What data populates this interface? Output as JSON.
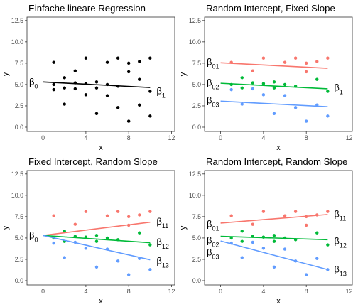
{
  "chart_data": [
    {
      "type": "scatter",
      "title": "Einfache lineare Regression",
      "xlabel": "x",
      "ylabel": "y",
      "xlim": [
        -1.5,
        12.3
      ],
      "ylim": [
        -0.5,
        12.9
      ],
      "xticks": [
        "0",
        "4",
        "8",
        "12"
      ],
      "yticks": [
        "0.0",
        "2.5",
        "5.0",
        "7.5",
        "10.0",
        "12.5"
      ],
      "grid": false,
      "points": [
        {
          "x": 1,
          "y": 7.6
        },
        {
          "x": 1,
          "y": 4.4
        },
        {
          "x": 1,
          "y": 5.0
        },
        {
          "x": 2,
          "y": 5.8
        },
        {
          "x": 2,
          "y": 4.6
        },
        {
          "x": 2,
          "y": 2.7
        },
        {
          "x": 3,
          "y": 6.6
        },
        {
          "x": 3,
          "y": 5.2
        },
        {
          "x": 3,
          "y": 4.5
        },
        {
          "x": 4,
          "y": 8.1
        },
        {
          "x": 4,
          "y": 5.1
        },
        {
          "x": 4,
          "y": 3.8
        },
        {
          "x": 5,
          "y": 5.3
        },
        {
          "x": 5,
          "y": 4.6
        },
        {
          "x": 5,
          "y": 1.6
        },
        {
          "x": 6,
          "y": 7.6
        },
        {
          "x": 6,
          "y": 5.0
        },
        {
          "x": 6,
          "y": 3.7
        },
        {
          "x": 7,
          "y": 8.1
        },
        {
          "x": 7,
          "y": 4.8
        },
        {
          "x": 7,
          "y": 2.3
        },
        {
          "x": 8,
          "y": 7.5
        },
        {
          "x": 8,
          "y": 6.5
        },
        {
          "x": 8,
          "y": 0.7
        },
        {
          "x": 9,
          "y": 7.7
        },
        {
          "x": 9,
          "y": 5.6
        },
        {
          "x": 9,
          "y": 2.6
        },
        {
          "x": 10,
          "y": 8.1
        },
        {
          "x": 10,
          "y": 4.2
        },
        {
          "x": 10,
          "y": 1.3
        }
      ],
      "lines": [
        {
          "x1": 0,
          "y1": 5.3,
          "x2": 10,
          "y2": 4.65,
          "color": "#000000"
        }
      ],
      "annotations": [
        {
          "text": "β",
          "sub": "0",
          "x": -1.4,
          "y": 5.3
        },
        {
          "text": "β",
          "sub": "1",
          "x": 10.6,
          "y": 4.2
        }
      ]
    },
    {
      "type": "scatter",
      "title": "Random Intercept, Fixed Slope",
      "xlabel": "x",
      "ylabel": "y",
      "xlim": [
        -1.5,
        12.3
      ],
      "ylim": [
        -0.5,
        12.9
      ],
      "xticks": [
        "0",
        "4",
        "8",
        "12"
      ],
      "yticks": [
        "0.0",
        "2.5",
        "5.0",
        "7.5",
        "10.0",
        "12.5"
      ],
      "grid": false,
      "series_colors": [
        "#F8766D",
        "#00BA38",
        "#619CFF"
      ],
      "points": [
        {
          "x": 1,
          "y": 7.6,
          "g": 0
        },
        {
          "x": 1,
          "y": 5.0,
          "g": 1
        },
        {
          "x": 1,
          "y": 4.4,
          "g": 2
        },
        {
          "x": 2,
          "y": 5.8,
          "g": 1
        },
        {
          "x": 2,
          "y": 4.6,
          "g": 1
        },
        {
          "x": 2,
          "y": 2.7,
          "g": 2
        },
        {
          "x": 3,
          "y": 6.6,
          "g": 0
        },
        {
          "x": 3,
          "y": 5.2,
          "g": 1
        },
        {
          "x": 3,
          "y": 4.5,
          "g": 2
        },
        {
          "x": 4,
          "y": 8.1,
          "g": 0
        },
        {
          "x": 4,
          "y": 5.1,
          "g": 1
        },
        {
          "x": 4,
          "y": 3.8,
          "g": 2
        },
        {
          "x": 5,
          "y": 5.3,
          "g": 1
        },
        {
          "x": 5,
          "y": 4.6,
          "g": 1
        },
        {
          "x": 5,
          "y": 1.6,
          "g": 2
        },
        {
          "x": 6,
          "y": 7.6,
          "g": 0
        },
        {
          "x": 6,
          "y": 5.0,
          "g": 1
        },
        {
          "x": 6,
          "y": 3.7,
          "g": 2
        },
        {
          "x": 7,
          "y": 8.1,
          "g": 0
        },
        {
          "x": 7,
          "y": 4.8,
          "g": 1
        },
        {
          "x": 7,
          "y": 2.3,
          "g": 2
        },
        {
          "x": 8,
          "y": 7.5,
          "g": 0
        },
        {
          "x": 8,
          "y": 6.5,
          "g": 0
        },
        {
          "x": 8,
          "y": 0.7,
          "g": 2
        },
        {
          "x": 9,
          "y": 7.7,
          "g": 0
        },
        {
          "x": 9,
          "y": 5.6,
          "g": 1
        },
        {
          "x": 9,
          "y": 2.6,
          "g": 2
        },
        {
          "x": 10,
          "y": 8.1,
          "g": 0
        },
        {
          "x": 10,
          "y": 4.2,
          "g": 1
        },
        {
          "x": 10,
          "y": 1.3,
          "g": 2
        }
      ],
      "lines": [
        {
          "x1": 0,
          "y1": 7.55,
          "x2": 10,
          "y2": 6.9,
          "color": "#F8766D"
        },
        {
          "x1": 0,
          "y1": 5.15,
          "x2": 10,
          "y2": 4.5,
          "color": "#00BA38"
        },
        {
          "x1": 0,
          "y1": 3.05,
          "x2": 10,
          "y2": 2.4,
          "color": "#619CFF"
        }
      ],
      "annotations": [
        {
          "text": "β",
          "sub": "01",
          "x": -1.4,
          "y": 7.6
        },
        {
          "text": "β",
          "sub": "02",
          "x": -1.4,
          "y": 5.2
        },
        {
          "text": "β",
          "sub": "03",
          "x": -1.4,
          "y": 3.1
        },
        {
          "text": "β",
          "sub": "1",
          "x": 10.6,
          "y": 4.6
        }
      ]
    },
    {
      "type": "scatter",
      "title": "Fixed Intercept, Random Slope",
      "xlabel": "x",
      "ylabel": "y",
      "xlim": [
        -1.5,
        12.3
      ],
      "ylim": [
        -0.5,
        12.9
      ],
      "xticks": [
        "0",
        "4",
        "8",
        "12"
      ],
      "yticks": [
        "0.0",
        "2.5",
        "5.0",
        "7.5",
        "10.0",
        "12.5"
      ],
      "grid": false,
      "series_colors": [
        "#F8766D",
        "#00BA38",
        "#619CFF"
      ],
      "points": [
        {
          "x": 1,
          "y": 7.6,
          "g": 0
        },
        {
          "x": 1,
          "y": 5.0,
          "g": 1
        },
        {
          "x": 1,
          "y": 4.4,
          "g": 2
        },
        {
          "x": 2,
          "y": 5.8,
          "g": 1
        },
        {
          "x": 2,
          "y": 4.6,
          "g": 1
        },
        {
          "x": 2,
          "y": 2.7,
          "g": 2
        },
        {
          "x": 3,
          "y": 6.6,
          "g": 0
        },
        {
          "x": 3,
          "y": 5.2,
          "g": 1
        },
        {
          "x": 3,
          "y": 4.5,
          "g": 2
        },
        {
          "x": 4,
          "y": 8.1,
          "g": 0
        },
        {
          "x": 4,
          "y": 5.1,
          "g": 1
        },
        {
          "x": 4,
          "y": 3.8,
          "g": 2
        },
        {
          "x": 5,
          "y": 5.3,
          "g": 1
        },
        {
          "x": 5,
          "y": 4.6,
          "g": 1
        },
        {
          "x": 5,
          "y": 1.6,
          "g": 2
        },
        {
          "x": 6,
          "y": 7.6,
          "g": 0
        },
        {
          "x": 6,
          "y": 5.0,
          "g": 1
        },
        {
          "x": 6,
          "y": 3.7,
          "g": 2
        },
        {
          "x": 7,
          "y": 8.1,
          "g": 0
        },
        {
          "x": 7,
          "y": 4.8,
          "g": 1
        },
        {
          "x": 7,
          "y": 2.3,
          "g": 2
        },
        {
          "x": 8,
          "y": 7.5,
          "g": 0
        },
        {
          "x": 8,
          "y": 6.5,
          "g": 0
        },
        {
          "x": 8,
          "y": 0.7,
          "g": 2
        },
        {
          "x": 9,
          "y": 7.7,
          "g": 0
        },
        {
          "x": 9,
          "y": 5.6,
          "g": 1
        },
        {
          "x": 9,
          "y": 2.6,
          "g": 2
        },
        {
          "x": 10,
          "y": 8.1,
          "g": 0
        },
        {
          "x": 10,
          "y": 4.2,
          "g": 1
        },
        {
          "x": 10,
          "y": 1.3,
          "g": 2
        }
      ],
      "lines": [
        {
          "x1": 0,
          "y1": 5.3,
          "x2": 10,
          "y2": 6.85,
          "color": "#F8766D"
        },
        {
          "x1": 0,
          "y1": 5.3,
          "x2": 10,
          "y2": 4.45,
          "color": "#00BA38"
        },
        {
          "x1": 0,
          "y1": 5.3,
          "x2": 10,
          "y2": 2.45,
          "color": "#619CFF"
        }
      ],
      "annotations": [
        {
          "text": "β",
          "sub": "0",
          "x": -1.4,
          "y": 5.3
        },
        {
          "text": "β",
          "sub": "11",
          "x": 10.6,
          "y": 6.9
        },
        {
          "text": "β",
          "sub": "12",
          "x": 10.6,
          "y": 4.5
        },
        {
          "text": "β",
          "sub": "13",
          "x": 10.6,
          "y": 2.3
        }
      ]
    },
    {
      "type": "scatter",
      "title": "Random Intercept, Random Slope",
      "xlabel": "x",
      "ylabel": "y",
      "xlim": [
        -1.5,
        12.3
      ],
      "ylim": [
        -0.5,
        12.9
      ],
      "xticks": [
        "0",
        "4",
        "8",
        "12"
      ],
      "yticks": [
        "0.0",
        "2.5",
        "5.0",
        "7.5",
        "10.0",
        "12.5"
      ],
      "grid": false,
      "series_colors": [
        "#F8766D",
        "#00BA38",
        "#619CFF"
      ],
      "points": [
        {
          "x": 1,
          "y": 7.6,
          "g": 0
        },
        {
          "x": 1,
          "y": 5.0,
          "g": 1
        },
        {
          "x": 1,
          "y": 4.4,
          "g": 2
        },
        {
          "x": 2,
          "y": 5.8,
          "g": 1
        },
        {
          "x": 2,
          "y": 4.6,
          "g": 1
        },
        {
          "x": 2,
          "y": 2.7,
          "g": 2
        },
        {
          "x": 3,
          "y": 6.6,
          "g": 0
        },
        {
          "x": 3,
          "y": 5.2,
          "g": 1
        },
        {
          "x": 3,
          "y": 4.5,
          "g": 2
        },
        {
          "x": 4,
          "y": 8.1,
          "g": 0
        },
        {
          "x": 4,
          "y": 5.1,
          "g": 1
        },
        {
          "x": 4,
          "y": 3.8,
          "g": 2
        },
        {
          "x": 5,
          "y": 5.3,
          "g": 1
        },
        {
          "x": 5,
          "y": 4.6,
          "g": 1
        },
        {
          "x": 5,
          "y": 1.6,
          "g": 2
        },
        {
          "x": 6,
          "y": 7.6,
          "g": 0
        },
        {
          "x": 6,
          "y": 5.0,
          "g": 1
        },
        {
          "x": 6,
          "y": 3.7,
          "g": 2
        },
        {
          "x": 7,
          "y": 8.1,
          "g": 0
        },
        {
          "x": 7,
          "y": 4.8,
          "g": 1
        },
        {
          "x": 7,
          "y": 2.3,
          "g": 2
        },
        {
          "x": 8,
          "y": 7.5,
          "g": 0
        },
        {
          "x": 8,
          "y": 6.5,
          "g": 0
        },
        {
          "x": 8,
          "y": 0.7,
          "g": 2
        },
        {
          "x": 9,
          "y": 7.7,
          "g": 0
        },
        {
          "x": 9,
          "y": 5.6,
          "g": 1
        },
        {
          "x": 9,
          "y": 2.6,
          "g": 2
        },
        {
          "x": 10,
          "y": 8.1,
          "g": 0
        },
        {
          "x": 10,
          "y": 4.2,
          "g": 1
        },
        {
          "x": 10,
          "y": 1.3,
          "g": 2
        }
      ],
      "lines": [
        {
          "x1": 0,
          "y1": 6.75,
          "x2": 10,
          "y2": 7.75,
          "color": "#F8766D"
        },
        {
          "x1": 0,
          "y1": 5.2,
          "x2": 10,
          "y2": 4.8,
          "color": "#00BA38"
        },
        {
          "x1": 0,
          "y1": 4.65,
          "x2": 10,
          "y2": 1.3,
          "color": "#619CFF"
        }
      ],
      "annotations": [
        {
          "text": "β",
          "sub": "01",
          "x": -1.4,
          "y": 6.6
        },
        {
          "text": "β",
          "sub": "02",
          "x": -1.4,
          "y": 4.7
        },
        {
          "text": "β",
          "sub": "03",
          "x": -1.4,
          "y": 3.3
        },
        {
          "text": "β",
          "sub": "11",
          "x": 10.6,
          "y": 7.8
        },
        {
          "text": "β",
          "sub": "12",
          "x": 10.6,
          "y": 4.6
        },
        {
          "text": "β",
          "sub": "13",
          "x": 10.6,
          "y": 1.3
        }
      ]
    }
  ]
}
